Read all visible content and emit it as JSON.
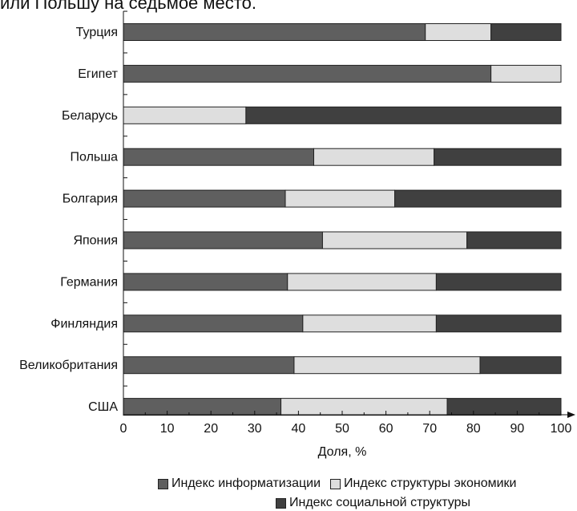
{
  "header_fragment": "или Польшу на седьмое место.",
  "chart_data": {
    "type": "bar",
    "orientation": "horizontal",
    "stacked": true,
    "categories": [
      "Турция",
      "Египет",
      "Беларусь",
      "Польша",
      "Болгария",
      "Япония",
      "Германия",
      "Финляндия",
      "Великобритания",
      "США"
    ],
    "series": [
      {
        "name": "Индекс информатизации",
        "color": "#5f5f5f",
        "values": [
          69,
          84,
          0,
          43.5,
          37,
          45.5,
          37.5,
          41,
          39,
          36
        ]
      },
      {
        "name": "Индекс структуры экономики",
        "color": "#dedede",
        "values": [
          15,
          16,
          28,
          27.5,
          25,
          33,
          34,
          30.5,
          42.5,
          38
        ]
      },
      {
        "name": "Индекс социальной структуры",
        "color": "#404040",
        "values": [
          16,
          0,
          72,
          29,
          38,
          21.5,
          28.5,
          28.5,
          18.5,
          26
        ]
      }
    ],
    "xlabel": "Доля, %",
    "xlim": [
      0,
      100
    ],
    "xticks": [
      "0",
      "10",
      "20",
      "30",
      "40",
      "50",
      "60",
      "70",
      "80",
      "90",
      "100"
    ],
    "legend_position": "bottom"
  }
}
